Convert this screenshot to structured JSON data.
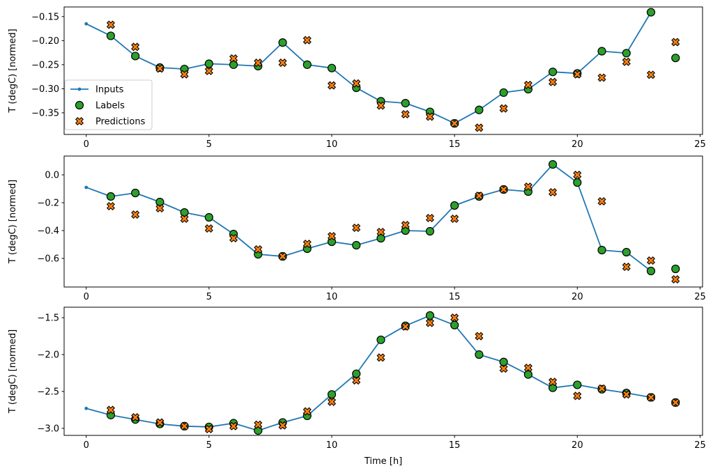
{
  "figure": {
    "background": "#ffffff",
    "xlabel": "Time [h]",
    "colors": {
      "inputs": "#1f77b4",
      "labels": "#2ca02c",
      "predictions": "#ff7f0e",
      "marker_edge": "#000000",
      "spine": "#000000",
      "legend_border": "#cccccc",
      "legend_bg": "#ffffff"
    }
  },
  "chart_data": [
    {
      "type": "line",
      "ylabel": "T (degC) [normed]",
      "xlabel": "",
      "xlim": [
        -0.9,
        25.1
      ],
      "ylim": [
        -0.395,
        -0.13
      ],
      "xticks": [
        0,
        5,
        10,
        15,
        20,
        25
      ],
      "xtick_labels": [
        "0",
        "5",
        "10",
        "15",
        "20",
        "25"
      ],
      "yticks": [
        -0.15,
        -0.2,
        -0.25,
        -0.3,
        -0.35
      ],
      "ytick_labels": [
        "−0.15",
        "−0.20",
        "−0.25",
        "−0.30",
        "−0.35"
      ],
      "grid": false,
      "legend": {
        "position": "upper-left-inside",
        "entries": [
          {
            "label": "Inputs",
            "marker": "line-dot",
            "color": "#1f77b4"
          },
          {
            "label": "Labels",
            "marker": "circle",
            "color": "#2ca02c"
          },
          {
            "label": "Predictions",
            "marker": "x",
            "color": "#ff7f0e"
          }
        ]
      },
      "series": [
        {
          "name": "Inputs",
          "marker": "line-dot",
          "color": "#1f77b4",
          "x": [
            0,
            1,
            2,
            3,
            4,
            5,
            6,
            7,
            8,
            9,
            10,
            11,
            12,
            13,
            14,
            15,
            16,
            17,
            18,
            19,
            20,
            21,
            22,
            23
          ],
          "y": [
            -0.165,
            -0.19,
            -0.232,
            -0.256,
            -0.259,
            -0.248,
            -0.25,
            -0.253,
            -0.204,
            -0.25,
            -0.257,
            -0.298,
            -0.326,
            -0.33,
            -0.348,
            -0.372,
            -0.344,
            -0.308,
            -0.301,
            -0.265,
            -0.268,
            -0.222,
            -0.226,
            -0.141
          ]
        },
        {
          "name": "Labels",
          "marker": "circle",
          "color": "#2ca02c",
          "x": [
            1,
            2,
            3,
            4,
            5,
            6,
            7,
            8,
            9,
            10,
            11,
            12,
            13,
            14,
            15,
            16,
            17,
            18,
            19,
            20,
            21,
            22,
            23,
            24
          ],
          "y": [
            -0.19,
            -0.232,
            -0.256,
            -0.259,
            -0.248,
            -0.25,
            -0.253,
            -0.204,
            -0.25,
            -0.257,
            -0.298,
            -0.326,
            -0.33,
            -0.348,
            -0.372,
            -0.344,
            -0.308,
            -0.301,
            -0.265,
            -0.268,
            -0.222,
            -0.226,
            -0.141,
            -0.236
          ]
        },
        {
          "name": "Predictions",
          "marker": "x",
          "color": "#ff7f0e",
          "x": [
            1,
            2,
            3,
            4,
            5,
            6,
            7,
            8,
            9,
            10,
            11,
            12,
            13,
            14,
            15,
            16,
            17,
            18,
            19,
            20,
            21,
            22,
            23,
            24
          ],
          "y": [
            -0.167,
            -0.213,
            -0.258,
            -0.27,
            -0.263,
            -0.237,
            -0.246,
            -0.246,
            -0.199,
            -0.293,
            -0.289,
            -0.335,
            -0.353,
            -0.358,
            -0.372,
            -0.381,
            -0.341,
            -0.292,
            -0.286,
            -0.27,
            -0.277,
            -0.244,
            -0.271,
            -0.203
          ]
        }
      ]
    },
    {
      "type": "line",
      "ylabel": "T (degC) [normed]",
      "xlabel": "",
      "xlim": [
        -0.9,
        25.1
      ],
      "ylim": [
        -0.805,
        0.135
      ],
      "xticks": [
        0,
        5,
        10,
        15,
        20,
        25
      ],
      "xtick_labels": [
        "0",
        "5",
        "10",
        "15",
        "20",
        "25"
      ],
      "yticks": [
        0.0,
        -0.2,
        -0.4,
        -0.6
      ],
      "ytick_labels": [
        "0.0",
        "−0.2",
        "−0.4",
        "−0.6"
      ],
      "grid": false,
      "series": [
        {
          "name": "Inputs",
          "marker": "line-dot",
          "color": "#1f77b4",
          "x": [
            0,
            1,
            2,
            3,
            4,
            5,
            6,
            7,
            8,
            9,
            10,
            11,
            12,
            13,
            14,
            15,
            16,
            17,
            18,
            19,
            20,
            21,
            22,
            23
          ],
          "y": [
            -0.09,
            -0.155,
            -0.13,
            -0.195,
            -0.27,
            -0.305,
            -0.425,
            -0.57,
            -0.585,
            -0.53,
            -0.48,
            -0.505,
            -0.455,
            -0.4,
            -0.405,
            -0.22,
            -0.155,
            -0.105,
            -0.12,
            0.075,
            -0.055,
            -0.54,
            -0.555,
            -0.69
          ]
        },
        {
          "name": "Labels",
          "marker": "circle",
          "color": "#2ca02c",
          "x": [
            1,
            2,
            3,
            4,
            5,
            6,
            7,
            8,
            9,
            10,
            11,
            12,
            13,
            14,
            15,
            16,
            17,
            18,
            19,
            20,
            21,
            22,
            23,
            24
          ],
          "y": [
            -0.155,
            -0.13,
            -0.195,
            -0.27,
            -0.305,
            -0.425,
            -0.57,
            -0.585,
            -0.53,
            -0.48,
            -0.505,
            -0.455,
            -0.4,
            -0.405,
            -0.22,
            -0.155,
            -0.105,
            -0.12,
            0.075,
            -0.055,
            -0.54,
            -0.555,
            -0.69,
            -0.675
          ]
        },
        {
          "name": "Predictions",
          "marker": "x",
          "color": "#ff7f0e",
          "x": [
            1,
            2,
            3,
            4,
            5,
            6,
            7,
            8,
            9,
            10,
            11,
            12,
            13,
            14,
            15,
            16,
            17,
            18,
            19,
            20,
            21,
            22,
            23,
            24
          ],
          "y": [
            -0.225,
            -0.285,
            -0.24,
            -0.315,
            -0.385,
            -0.455,
            -0.535,
            -0.585,
            -0.495,
            -0.44,
            -0.38,
            -0.41,
            -0.36,
            -0.31,
            -0.315,
            -0.15,
            -0.105,
            -0.085,
            -0.125,
            0.0,
            -0.19,
            -0.66,
            -0.615,
            -0.75
          ]
        }
      ]
    },
    {
      "type": "line",
      "ylabel": "T (degC) [normed]",
      "xlabel": "Time [h]",
      "xlim": [
        -0.9,
        25.1
      ],
      "ylim": [
        -3.095,
        -1.358
      ],
      "xticks": [
        0,
        5,
        10,
        15,
        20,
        25
      ],
      "xtick_labels": [
        "0",
        "5",
        "10",
        "15",
        "20",
        "25"
      ],
      "yticks": [
        -1.5,
        -2.0,
        -2.5,
        -3.0
      ],
      "ytick_labels": [
        "−1.5",
        "−2.0",
        "−2.5",
        "−3.0"
      ],
      "grid": false,
      "series": [
        {
          "name": "Inputs",
          "marker": "line-dot",
          "color": "#1f77b4",
          "x": [
            0,
            1,
            2,
            3,
            4,
            5,
            6,
            7,
            8,
            9,
            10,
            11,
            12,
            13,
            14,
            15,
            16,
            17,
            18,
            19,
            20,
            21,
            22,
            23
          ],
          "y": [
            -2.73,
            -2.82,
            -2.88,
            -2.94,
            -2.97,
            -2.98,
            -2.93,
            -3.03,
            -2.92,
            -2.83,
            -2.54,
            -2.26,
            -1.8,
            -1.61,
            -1.47,
            -1.6,
            -2.0,
            -2.1,
            -2.27,
            -2.45,
            -2.41,
            -2.47,
            -2.52,
            -2.58
          ]
        },
        {
          "name": "Labels",
          "marker": "circle",
          "color": "#2ca02c",
          "x": [
            1,
            2,
            3,
            4,
            5,
            6,
            7,
            8,
            9,
            10,
            11,
            12,
            13,
            14,
            15,
            16,
            17,
            18,
            19,
            20,
            21,
            22,
            23,
            24
          ],
          "y": [
            -2.82,
            -2.88,
            -2.94,
            -2.97,
            -2.98,
            -2.93,
            -3.03,
            -2.92,
            -2.83,
            -2.54,
            -2.26,
            -1.8,
            -1.61,
            -1.47,
            -1.6,
            -2.0,
            -2.1,
            -2.27,
            -2.45,
            -2.41,
            -2.47,
            -2.52,
            -2.58,
            -2.65
          ]
        },
        {
          "name": "Predictions",
          "marker": "x",
          "color": "#ff7f0e",
          "x": [
            1,
            2,
            3,
            4,
            5,
            6,
            7,
            8,
            9,
            10,
            11,
            12,
            13,
            14,
            15,
            16,
            17,
            18,
            19,
            20,
            21,
            22,
            23,
            24
          ],
          "y": [
            -2.75,
            -2.85,
            -2.92,
            -2.97,
            -3.01,
            -2.97,
            -2.95,
            -2.96,
            -2.77,
            -2.64,
            -2.35,
            -2.04,
            -1.62,
            -1.57,
            -1.5,
            -1.75,
            -2.19,
            -2.18,
            -2.37,
            -2.56,
            -2.46,
            -2.54,
            -2.58,
            -2.65
          ]
        }
      ]
    }
  ]
}
